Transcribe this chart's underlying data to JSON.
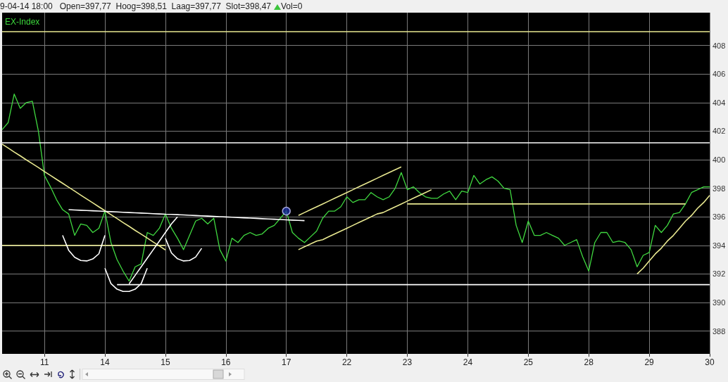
{
  "chart_data": {
    "type": "line",
    "title": "9-04-14 18:00   Open=397,77  Hoog=398,51  Laag=397,77  Slot=398,47",
    "subtitle": "EX-Index",
    "annotations": [
      "Vol=0"
    ],
    "categories": [
      null,
      null,
      null,
      null,
      null,
      null,
      null,
      "11",
      null,
      null,
      null,
      null,
      null,
      null,
      null,
      null,
      null,
      "14",
      null,
      null,
      null,
      null,
      null,
      null,
      null,
      null,
      null,
      "15",
      null,
      null,
      null,
      null,
      null,
      null,
      null,
      null,
      null,
      "16",
      null,
      null,
      null,
      null,
      null,
      null,
      null,
      null,
      null,
      "17",
      null,
      null,
      null,
      null,
      null,
      null,
      null,
      null,
      null,
      "22",
      null,
      null,
      null,
      null,
      null,
      null,
      null,
      null,
      null,
      "23",
      null,
      null,
      null,
      null,
      null,
      null,
      null,
      null,
      null,
      "24",
      null,
      null,
      null,
      null,
      null,
      null,
      null,
      null,
      null,
      "25",
      null,
      null,
      null,
      null,
      null,
      null,
      null,
      null,
      null,
      "28",
      null,
      null,
      null,
      null,
      null,
      null,
      null,
      null,
      null,
      "29",
      null,
      null,
      null,
      null,
      null,
      null,
      null,
      null,
      null,
      "30"
    ],
    "ylim": [
      386.4,
      410.3
    ],
    "yticks": [
      388,
      390,
      392,
      394,
      396,
      398,
      400,
      402,
      404,
      406,
      408
    ],
    "grid": true,
    "marker": "none",
    "ref_lines": [
      {
        "axis": "y",
        "value": 409,
        "color": "#e8e890"
      },
      {
        "axis": "y",
        "value": 401.2,
        "color": "#ffffff"
      }
    ],
    "series": [
      {
        "color": "#40d840",
        "values": [
          402.1,
          402.6,
          404.6,
          403.6,
          404.0,
          404.1,
          402.0,
          398.9,
          398.1,
          397.2,
          396.5,
          396.2,
          394.7,
          395.5,
          395.4,
          394.9,
          395.2,
          396.4,
          394.2,
          393.0,
          392.2,
          391.5,
          392.5,
          392.7,
          394.9,
          394.7,
          395.2,
          396.2,
          395.2,
          394.5,
          393.7,
          394.7,
          395.7,
          395.9,
          395.5,
          395.9,
          393.7,
          392.9,
          394.5,
          394.2,
          394.7,
          394.9,
          394.7,
          394.8,
          395.2,
          395.4,
          395.9,
          396.4,
          394.9,
          394.5,
          394.2,
          394.6,
          395.0,
          395.9,
          396.4,
          396.4,
          396.7,
          397.4,
          397.0,
          397.2,
          397.2,
          397.7,
          397.4,
          397.2,
          397.4,
          398.0,
          399.1,
          397.9,
          398.1,
          397.7,
          397.4,
          397.3,
          397.3,
          397.6,
          397.8,
          397.2,
          397.8,
          397.7,
          398.9,
          398.3,
          398.6,
          398.8,
          398.5,
          398.0,
          397.9,
          395.4,
          394.2,
          395.7,
          394.7,
          394.7,
          394.9,
          394.7,
          394.5,
          394.0,
          394.2,
          394.4,
          393.2,
          392.2,
          394.2,
          394.9,
          394.9,
          394.2,
          394.3,
          394.2,
          393.7,
          392.5,
          393.3,
          393.5,
          395.4,
          394.9,
          395.4,
          396.2,
          396.3,
          396.9,
          397.7,
          397.9,
          398.1,
          398.1
        ]
      },
      {
        "color": "#e8e890",
        "values": [
          394,
          394,
          394,
          394,
          394,
          394,
          394,
          394,
          394,
          394,
          394,
          394,
          394,
          394,
          394,
          394,
          394,
          394,
          394,
          394,
          394,
          394,
          394,
          394,
          394,
          394,
          394,
          394,
          null,
          null,
          null,
          null,
          null,
          null,
          null,
          null,
          null,
          null,
          null,
          null,
          null,
          null,
          null,
          null,
          null,
          null,
          null,
          null,
          null,
          null,
          null,
          null,
          null,
          null,
          null,
          null,
          null,
          null,
          null,
          null,
          null,
          null,
          null,
          null,
          null,
          null,
          null,
          null,
          null,
          null,
          null,
          null,
          null,
          null,
          null,
          null,
          null,
          null,
          null,
          null,
          null,
          null,
          null,
          null,
          null,
          null,
          null,
          null,
          null,
          null,
          null,
          null,
          null,
          null,
          null,
          null,
          null,
          null,
          null,
          null,
          null,
          null,
          null,
          null,
          null,
          null,
          null,
          null,
          null,
          null,
          null,
          null,
          null,
          null,
          null,
          null,
          null,
          null
        ]
      },
      {
        "color": "#ffffff",
        "values": [
          null,
          null,
          null,
          null,
          null,
          null,
          null,
          null,
          null,
          null,
          null,
          null,
          null,
          null,
          null,
          null,
          null,
          null,
          null,
          391.25,
          391.25,
          391.25,
          391.25,
          391.25,
          391.25,
          391.25,
          391.25,
          391.25,
          391.25,
          391.25,
          391.25,
          391.25,
          391.25,
          391.25,
          391.25,
          391.25,
          391.25,
          391.25,
          391.25,
          391.25,
          391.25,
          391.25,
          391.25,
          391.25,
          391.25,
          391.25,
          391.25,
          391.25,
          391.25,
          391.25,
          391.25,
          391.25,
          391.25,
          391.25,
          391.25,
          391.25,
          391.25,
          391.25,
          391.25,
          391.25,
          391.25,
          391.25,
          391.25,
          391.25,
          391.25,
          391.25,
          391.25,
          391.25,
          391.25,
          391.25,
          391.25,
          391.25,
          391.25,
          391.25,
          391.25,
          391.25,
          391.25,
          391.25,
          391.25,
          391.25,
          391.25,
          391.25,
          391.25,
          391.25,
          391.25,
          391.25,
          391.25,
          391.25,
          391.25,
          391.25,
          391.25,
          391.25,
          391.25,
          391.25,
          391.25,
          391.25,
          391.25,
          391.25,
          391.25,
          391.25,
          391.25,
          391.25,
          391.25,
          391.25,
          391.25,
          391.25,
          391.25,
          391.25,
          391.25,
          391.25,
          391.25,
          391.25,
          391.25,
          391.25,
          391.25,
          391.25,
          391.25,
          391.25
        ]
      },
      {
        "color": "#e8e890",
        "values": [
          null,
          null,
          null,
          null,
          null,
          null,
          null,
          null,
          null,
          null,
          null,
          null,
          null,
          null,
          null,
          null,
          null,
          null,
          null,
          null,
          null,
          null,
          null,
          null,
          null,
          null,
          null,
          null,
          null,
          null,
          null,
          null,
          null,
          null,
          null,
          null,
          null,
          null,
          null,
          null,
          null,
          null,
          null,
          null,
          null,
          null,
          null,
          null,
          null,
          null,
          null,
          null,
          null,
          null,
          null,
          null,
          null,
          null,
          null,
          null,
          null,
          null,
          null,
          null,
          null,
          null,
          null,
          396.9,
          396.9,
          396.9,
          396.9,
          396.9,
          396.9,
          396.9,
          396.9,
          396.9,
          396.9,
          396.9,
          396.9,
          396.9,
          396.9,
          396.9,
          396.9,
          396.9,
          396.9,
          396.9,
          396.9,
          396.9,
          396.9,
          396.9,
          396.9,
          396.9,
          396.9,
          396.9,
          396.9,
          396.9,
          396.9,
          396.9,
          396.9,
          396.9,
          396.9,
          396.9,
          396.9,
          396.9,
          396.9,
          396.9,
          396.9,
          396.9,
          396.9,
          396.9,
          396.9,
          396.9,
          396.9,
          396.9,
          null,
          null,
          null,
          null
        ]
      },
      {
        "color": "#e8e890",
        "values": [
          401.09,
          400.82,
          400.54,
          400.27,
          399.99,
          399.72,
          399.45,
          399.17,
          398.9,
          398.62,
          398.35,
          398.07,
          397.8,
          397.52,
          397.25,
          396.98,
          396.7,
          396.43,
          396.15,
          395.88,
          395.6,
          395.33,
          395.05,
          394.78,
          394.51,
          394.23,
          393.96,
          393.68,
          null,
          null,
          null,
          null,
          null,
          null,
          null,
          null,
          null,
          null,
          null,
          null,
          null,
          null,
          null,
          null,
          null,
          null,
          null,
          null,
          null,
          null,
          null,
          null,
          null,
          null,
          null,
          null,
          null,
          null,
          null,
          null,
          null,
          null,
          null,
          null,
          null,
          null,
          null,
          null,
          null,
          null,
          null,
          null,
          null,
          null,
          null,
          null,
          null,
          null,
          null,
          null,
          null,
          null,
          null,
          null,
          null,
          null,
          null,
          null,
          null,
          null,
          null,
          null,
          null,
          null,
          null,
          null,
          null,
          null,
          null,
          null,
          null,
          null,
          null,
          null,
          null,
          null,
          null,
          null,
          null,
          null,
          null,
          null,
          null,
          null,
          null,
          null,
          null,
          null
        ]
      },
      {
        "color": "#ffffff",
        "values": [
          null,
          null,
          null,
          null,
          null,
          null,
          null,
          null,
          null,
          null,
          null,
          396.5,
          396.48,
          396.46,
          396.44,
          396.42,
          396.4,
          396.38,
          396.36,
          396.34,
          396.32,
          396.3,
          396.28,
          396.26,
          396.24,
          396.22,
          396.2,
          396.18,
          396.17,
          396.15,
          396.13,
          396.11,
          396.09,
          396.07,
          396.05,
          396.03,
          396.01,
          395.99,
          395.97,
          395.95,
          395.93,
          395.91,
          395.89,
          395.87,
          395.85,
          395.83,
          395.81,
          395.79,
          395.77,
          395.75,
          395.73,
          null,
          null,
          null,
          null,
          null,
          null,
          null,
          null,
          null,
          null,
          null,
          null,
          null,
          null,
          null,
          null,
          null,
          null,
          null,
          null,
          null,
          null,
          null,
          null,
          null,
          null,
          null,
          null,
          null,
          null,
          null,
          null,
          null,
          null,
          null,
          null,
          null,
          null,
          null,
          null,
          null,
          null,
          null,
          null,
          null,
          null,
          null,
          null,
          null,
          null,
          null,
          null,
          null,
          null,
          null,
          null,
          null,
          null,
          null,
          null,
          null,
          null,
          null,
          null,
          null,
          null,
          null
        ]
      },
      {
        "color": "#ffffff",
        "values": [
          null,
          null,
          null,
          null,
          null,
          null,
          null,
          null,
          null,
          null,
          null,
          null,
          null,
          null,
          null,
          null,
          null,
          null,
          null,
          null,
          null,
          391.3,
          391.9,
          392.5,
          393.1,
          393.7,
          394.3,
          394.9,
          395.5,
          396.0,
          null,
          null,
          null,
          null,
          null,
          null,
          null,
          null,
          null,
          null,
          null,
          null,
          null,
          null,
          null,
          null,
          null,
          null,
          null,
          null,
          null,
          null,
          null,
          null,
          null,
          null,
          null,
          null,
          null,
          null,
          null,
          null,
          null,
          null,
          null,
          null,
          null,
          null,
          null,
          null,
          null,
          null,
          null,
          null,
          null,
          null,
          null,
          null,
          null,
          null,
          null,
          null,
          null,
          null,
          null,
          null,
          null,
          null,
          null,
          null,
          null,
          null,
          null,
          null,
          null,
          null,
          null,
          null,
          null,
          null,
          null,
          null,
          null,
          null,
          null,
          null,
          null,
          null,
          null,
          null,
          null,
          null,
          null,
          null,
          null,
          null,
          null,
          null
        ]
      },
      {
        "color": "#e8e890",
        "values": [
          null,
          null,
          null,
          null,
          null,
          null,
          null,
          null,
          null,
          null,
          null,
          null,
          null,
          null,
          null,
          null,
          null,
          null,
          null,
          null,
          null,
          null,
          null,
          null,
          null,
          null,
          null,
          null,
          null,
          null,
          null,
          null,
          null,
          null,
          null,
          null,
          null,
          null,
          null,
          null,
          null,
          null,
          null,
          null,
          null,
          null,
          null,
          null,
          null,
          396.1,
          396.3,
          396.5,
          396.7,
          396.9,
          397.1,
          397.3,
          397.5,
          397.7,
          397.9,
          398.1,
          398.3,
          398.5,
          398.7,
          398.9,
          399.1,
          399.3,
          399.5,
          null,
          null,
          null,
          null,
          null,
          null,
          null,
          null,
          null,
          null,
          null,
          null,
          null,
          null,
          null,
          null,
          null,
          null,
          null,
          null,
          null,
          null,
          null,
          null,
          null,
          null,
          null,
          null,
          null,
          null,
          null,
          null,
          null,
          null,
          null,
          null,
          null,
          null,
          null,
          null,
          null,
          null,
          null,
          null,
          null,
          null,
          null,
          null,
          null,
          null,
          null
        ]
      },
      {
        "color": "#e8e890",
        "values": [
          null,
          null,
          null,
          null,
          null,
          null,
          null,
          null,
          null,
          null,
          null,
          null,
          null,
          null,
          null,
          null,
          null,
          null,
          null,
          null,
          null,
          null,
          null,
          null,
          null,
          null,
          null,
          null,
          null,
          null,
          null,
          null,
          null,
          null,
          null,
          null,
          null,
          null,
          null,
          null,
          null,
          null,
          null,
          null,
          null,
          null,
          null,
          null,
          null,
          393.7,
          393.9,
          394.1,
          394.3,
          394.4,
          394.6,
          394.8,
          395.0,
          395.2,
          395.4,
          395.6,
          395.8,
          396.0,
          396.2,
          396.3,
          396.5,
          396.7,
          396.9,
          397.1,
          397.3,
          397.5,
          397.7,
          397.9,
          null,
          null,
          null,
          null,
          null,
          null,
          null,
          null,
          null,
          null,
          null,
          null,
          null,
          null,
          null,
          null,
          null,
          null,
          null,
          null,
          null,
          null,
          null,
          null,
          null,
          null,
          null,
          null,
          null,
          null,
          null,
          null,
          null,
          null,
          null,
          null,
          null,
          null,
          null,
          null,
          null,
          null,
          null,
          null,
          null,
          null
        ]
      },
      {
        "color": "#e8e890",
        "values": [
          null,
          null,
          null,
          null,
          null,
          null,
          null,
          null,
          null,
          null,
          null,
          null,
          null,
          null,
          null,
          null,
          null,
          null,
          null,
          null,
          null,
          null,
          null,
          null,
          null,
          null,
          null,
          null,
          null,
          null,
          null,
          null,
          null,
          null,
          null,
          null,
          null,
          null,
          null,
          null,
          null,
          null,
          null,
          null,
          null,
          null,
          null,
          null,
          null,
          null,
          null,
          null,
          null,
          null,
          null,
          null,
          null,
          null,
          null,
          null,
          null,
          null,
          null,
          null,
          null,
          null,
          null,
          null,
          null,
          null,
          null,
          null,
          null,
          null,
          null,
          null,
          null,
          null,
          null,
          null,
          null,
          null,
          null,
          null,
          null,
          null,
          null,
          null,
          null,
          null,
          null,
          null,
          null,
          null,
          null,
          null,
          null,
          null,
          null,
          null,
          null,
          null,
          null,
          null,
          null,
          392.0,
          392.4,
          392.9,
          393.4,
          393.8,
          394.3,
          394.7,
          395.2,
          395.7,
          396.1,
          396.6,
          397.0,
          397.5
        ]
      },
      {
        "color": "#ffffff",
        "values": [
          null,
          null,
          null,
          null,
          null,
          null,
          null,
          null,
          null,
          null,
          394.7,
          393.66,
          393.16,
          392.94,
          392.91,
          393.05,
          393.41,
          394.7,
          null,
          null,
          null,
          null,
          null,
          null,
          null,
          null,
          null,
          null,
          null,
          null,
          null,
          null,
          null,
          null,
          null,
          null,
          null,
          null,
          null,
          null,
          null,
          null,
          null,
          null,
          null,
          null,
          null,
          null,
          null,
          null,
          null,
          null,
          null,
          null,
          null,
          null,
          null,
          null,
          null,
          null,
          null,
          null,
          null,
          null,
          null,
          null,
          null,
          null,
          null,
          null,
          null,
          null,
          null,
          null,
          null,
          null,
          null,
          null,
          null,
          null,
          null,
          null,
          null,
          null,
          null,
          null,
          null,
          null,
          null,
          null,
          null,
          null,
          null,
          null,
          null,
          null,
          null,
          null,
          null,
          null,
          null,
          null,
          null,
          null,
          null,
          null,
          null,
          null,
          null,
          null,
          null,
          null,
          null,
          null,
          null,
          null,
          null,
          null
        ]
      },
      {
        "color": "#ffffff",
        "values": [
          null,
          null,
          null,
          null,
          null,
          null,
          null,
          null,
          null,
          null,
          null,
          null,
          null,
          null,
          null,
          null,
          null,
          392.4,
          391.32,
          390.93,
          390.77,
          390.77,
          390.93,
          391.32,
          392.4,
          null,
          null,
          null,
          null,
          null,
          null,
          null,
          null,
          null,
          null,
          null,
          null,
          null,
          null,
          null,
          null,
          null,
          null,
          null,
          null,
          null,
          null,
          null,
          null,
          null,
          null,
          null,
          null,
          null,
          null,
          null,
          null,
          null,
          null,
          null,
          null,
          null,
          null,
          null,
          null,
          null,
          null,
          null,
          null,
          null,
          null,
          null,
          null,
          null,
          null,
          null,
          null,
          null,
          null,
          null,
          null,
          null,
          null,
          null,
          null,
          null,
          null,
          null,
          null,
          null,
          null,
          null,
          null,
          null,
          null,
          null,
          null,
          null,
          null,
          null,
          null,
          null,
          null,
          null,
          null,
          null,
          null,
          null,
          null,
          null,
          null,
          null,
          null,
          null,
          null,
          null,
          null,
          null
        ]
      },
      {
        "color": "#ffffff",
        "values": [
          null,
          null,
          null,
          null,
          null,
          null,
          null,
          null,
          null,
          null,
          null,
          null,
          null,
          null,
          null,
          null,
          null,
          null,
          null,
          null,
          null,
          null,
          null,
          null,
          null,
          null,
          null,
          394.5,
          393.47,
          393.06,
          392.91,
          392.94,
          393.18,
          393.8,
          null,
          null,
          null,
          null,
          null,
          null,
          null,
          null,
          null,
          null,
          null,
          null,
          null,
          null,
          null,
          null,
          null,
          null,
          null,
          null,
          null,
          null,
          null,
          null,
          null,
          null,
          null,
          null,
          null,
          null,
          null,
          null,
          null,
          null,
          null,
          null,
          null,
          null,
          null,
          null,
          null,
          null,
          null,
          null,
          null,
          null,
          null,
          null,
          null,
          null,
          null,
          null,
          null,
          null,
          null,
          null,
          null,
          null,
          null,
          null,
          null,
          null,
          null,
          null,
          null,
          null,
          null,
          null,
          null,
          null,
          null,
          null,
          null,
          null,
          null,
          null,
          null,
          null,
          null,
          null,
          null,
          null,
          null,
          null
        ]
      },
      {
        "type": "scatter",
        "marker": "circle",
        "color": "#1c2fa0",
        "values": [
          null,
          null,
          null,
          null,
          null,
          null,
          null,
          null,
          null,
          null,
          null,
          null,
          null,
          null,
          null,
          null,
          null,
          null,
          null,
          null,
          null,
          null,
          null,
          null,
          null,
          null,
          null,
          null,
          null,
          null,
          null,
          null,
          null,
          null,
          null,
          null,
          null,
          null,
          null,
          null,
          null,
          null,
          null,
          null,
          null,
          null,
          null,
          396.4,
          null,
          null,
          null,
          null,
          null,
          null,
          null,
          null,
          null,
          null,
          null,
          null,
          null,
          null,
          null,
          null,
          null,
          null,
          null,
          null,
          null,
          null,
          null,
          null,
          null,
          null,
          null,
          null,
          null,
          null,
          null,
          null,
          null,
          null,
          null,
          null,
          null,
          null,
          null,
          null,
          null,
          null,
          null,
          null,
          null,
          null,
          null,
          null,
          null,
          null,
          null,
          null,
          null,
          null,
          null,
          null,
          null,
          null,
          null,
          null,
          null,
          null,
          null,
          null,
          null,
          null,
          null,
          null,
          null,
          null
        ]
      }
    ]
  }
}
